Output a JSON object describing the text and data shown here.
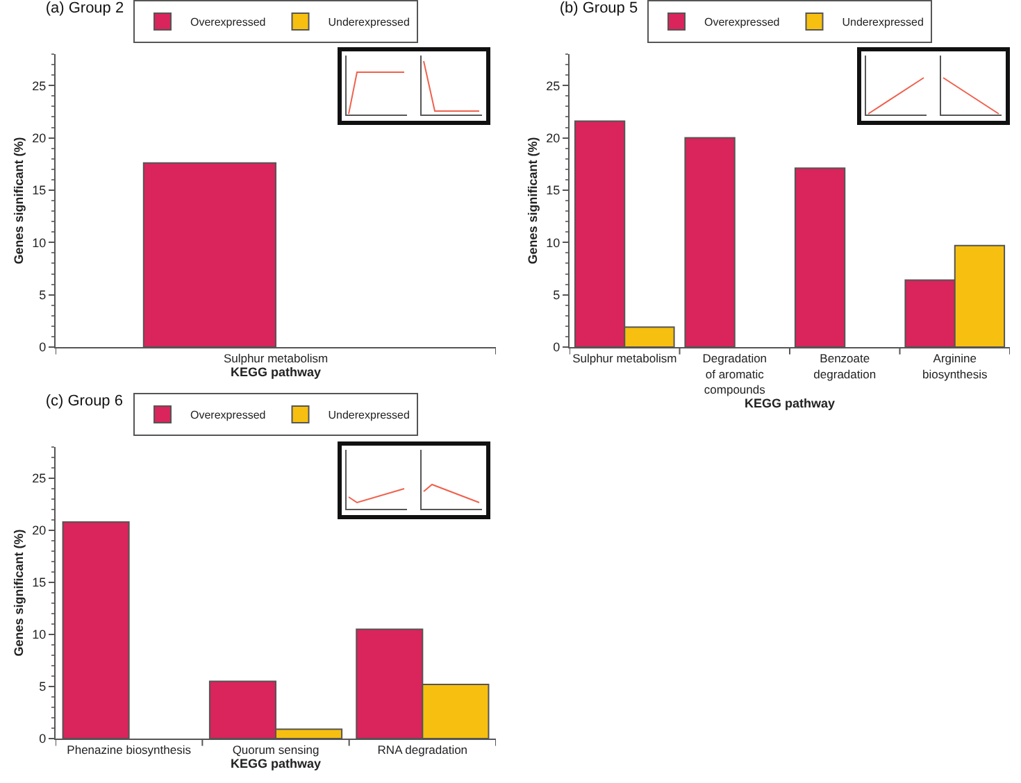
{
  "chart_data": [
    {
      "type": "bar",
      "title": "(a) Group 2",
      "xlabel": "KEGG pathway",
      "ylabel": "Genes significant (%)",
      "categories": [
        "Sulphur metabolism"
      ],
      "series": [
        {
          "name": "Overexpressed",
          "color": "#d9245c",
          "values": [
            17.6
          ]
        },
        {
          "name": "Underexpressed",
          "color": "#f7c010",
          "values": [
            null
          ]
        }
      ],
      "ylim": [
        0,
        28
      ],
      "yticks": [
        0,
        5,
        10,
        15,
        20,
        25
      ],
      "grid": false,
      "legend": "top"
    },
    {
      "type": "bar",
      "title": "(b) Group 5",
      "xlabel": "KEGG pathway",
      "ylabel": "Genes significant (%)",
      "categories": [
        "Sulphur metabolism",
        "Degradation of aromatic compounds",
        "Benzoate degradation",
        "Arginine biosynthesis"
      ],
      "series": [
        {
          "name": "Overexpressed",
          "color": "#d9245c",
          "values": [
            21.6,
            20.0,
            17.1,
            6.4
          ]
        },
        {
          "name": "Underexpressed",
          "color": "#f7c010",
          "values": [
            1.9,
            null,
            null,
            9.7
          ]
        }
      ],
      "ylim": [
        0,
        28
      ],
      "yticks": [
        0,
        5,
        10,
        15,
        20,
        25
      ],
      "grid": false,
      "legend": "top"
    },
    {
      "type": "bar",
      "title": "(c) Group 6",
      "xlabel": "KEGG pathway",
      "ylabel": "Genes significant (%)",
      "categories": [
        "Phenazine biosynthesis",
        "Quorum sensing",
        "RNA degradation"
      ],
      "series": [
        {
          "name": "Overexpressed",
          "color": "#d9245c",
          "values": [
            20.8,
            5.5,
            10.5
          ]
        },
        {
          "name": "Underexpressed",
          "color": "#f7c010",
          "values": [
            null,
            0.9,
            5.2
          ]
        }
      ],
      "ylim": [
        0,
        28
      ],
      "yticks": [
        0,
        5,
        10,
        15,
        20,
        25
      ],
      "grid": false,
      "legend": "top"
    }
  ]
}
